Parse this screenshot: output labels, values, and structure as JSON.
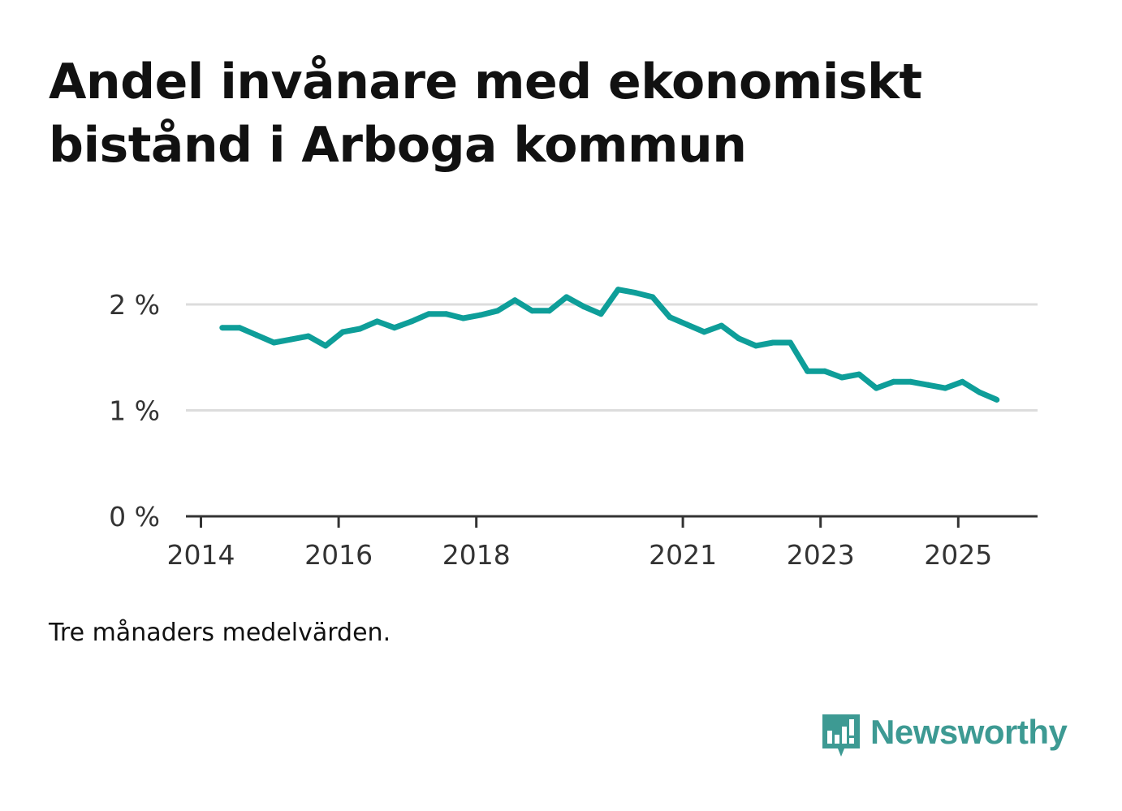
{
  "title": {
    "line1": "Andel invånare med ekonomiskt",
    "line2": "bistånd i Arboga kommun"
  },
  "note": "Tre månaders medelvärden.",
  "brand": {
    "name": "Newsworthy",
    "icon": "newsworthy-logo-icon",
    "color": "#3d9a93"
  },
  "chart_data": {
    "type": "line",
    "title": "Andel invånare med ekonomiskt bistånd i Arboga kommun",
    "xlabel": "",
    "ylabel": "",
    "ylim": [
      0,
      2.2
    ],
    "y_ticks": [
      {
        "value": 0,
        "label": "0 %"
      },
      {
        "value": 1,
        "label": "1 %"
      },
      {
        "value": 2,
        "label": "2 %"
      }
    ],
    "x_range": [
      2014,
      2026.17
    ],
    "x_ticks": [
      {
        "value": 2014,
        "label": "2014"
      },
      {
        "value": 2016,
        "label": "2016"
      },
      {
        "value": 2018,
        "label": "2018"
      },
      {
        "value": 2021,
        "label": "2021"
      },
      {
        "value": 2023,
        "label": "2023"
      },
      {
        "value": 2025,
        "label": "2025"
      }
    ],
    "grid": true,
    "color": "#0e9e99",
    "series": [
      {
        "name": "Andel invånare med ekonomiskt bistånd",
        "x": [
          2014.31,
          2014.56,
          2014.81,
          2015.06,
          2015.31,
          2015.56,
          2015.81,
          2016.06,
          2016.31,
          2016.56,
          2016.81,
          2017.06,
          2017.31,
          2017.56,
          2017.81,
          2018.06,
          2018.31,
          2018.56,
          2018.81,
          2019.06,
          2019.31,
          2019.56,
          2019.81,
          2020.06,
          2020.31,
          2020.56,
          2020.81,
          2021.06,
          2021.31,
          2021.56,
          2021.81,
          2022.06,
          2022.31,
          2022.56,
          2022.81,
          2023.06,
          2023.31,
          2023.56,
          2023.81,
          2024.06,
          2024.31,
          2024.56,
          2024.81,
          2025.06,
          2025.31,
          2025.56
        ],
        "values": [
          1.78,
          1.78,
          1.71,
          1.64,
          1.67,
          1.7,
          1.61,
          1.74,
          1.77,
          1.84,
          1.78,
          1.84,
          1.91,
          1.91,
          1.87,
          1.9,
          1.94,
          2.04,
          1.94,
          1.94,
          2.07,
          1.98,
          1.91,
          2.14,
          2.11,
          2.07,
          1.88,
          1.81,
          1.74,
          1.8,
          1.68,
          1.61,
          1.64,
          1.64,
          1.37,
          1.37,
          1.31,
          1.34,
          1.21,
          1.27,
          1.27,
          1.24,
          1.21,
          1.27,
          1.17,
          1.1
        ]
      }
    ]
  }
}
